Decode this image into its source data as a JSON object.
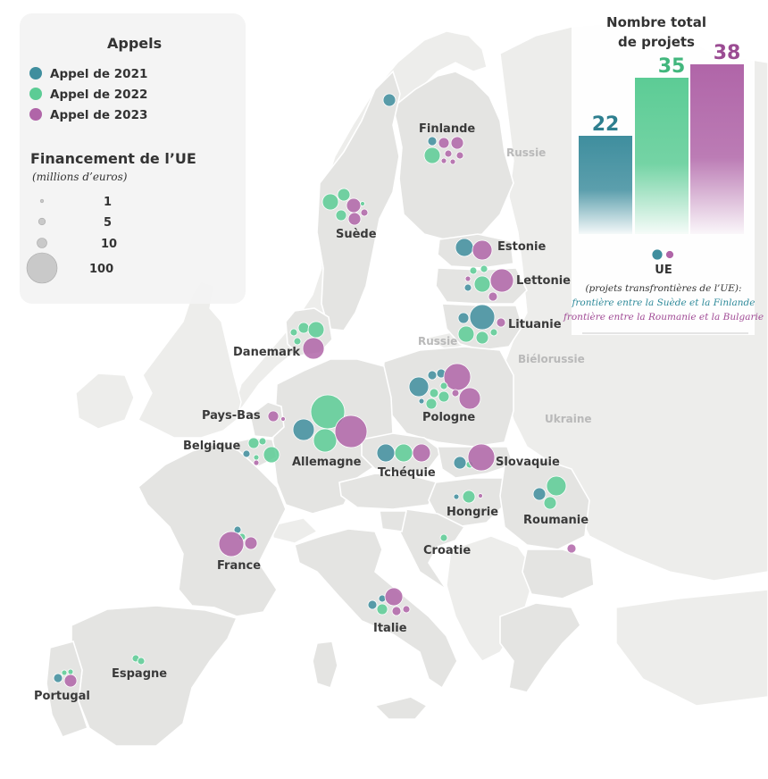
{
  "legend": {
    "calls_title": "Appels",
    "calls": [
      {
        "label": "Appel de 2021",
        "color": "#3f8e9e"
      },
      {
        "label": "Appel de 2022",
        "color": "#5ccc95"
      },
      {
        "label": "Appel de 2023",
        "color": "#b065a8"
      }
    ],
    "funding_title": "Financement de l’UE",
    "funding_subtitle": "(millions d’euros)",
    "sizes": [
      {
        "label": "1",
        "value": 1
      },
      {
        "label": "5",
        "value": 5
      },
      {
        "label": "10",
        "value": 10
      },
      {
        "label": "100",
        "value": 100
      }
    ]
  },
  "bars": {
    "title_line1": "Nombre total",
    "title_line2": "de projets",
    "items": [
      {
        "value": 22,
        "label": "22",
        "color": "#3f8e9e"
      },
      {
        "value": 35,
        "label": "35",
        "color": "#5ccc95"
      },
      {
        "value": 38,
        "label": "38",
        "color": "#b065a8"
      }
    ],
    "max": 38
  },
  "ue_box": {
    "label": "UE",
    "note": "(projets transfrontières de l’UE):",
    "note_teal": "frontière entre la Suède et la Finlande",
    "note_purple": "frontière entre la Roumanie et la Bulgarie"
  },
  "countries": [
    {
      "name": "Finlande"
    },
    {
      "name": "Suède"
    },
    {
      "name": "Estonie"
    },
    {
      "name": "Lettonie"
    },
    {
      "name": "Lituanie"
    },
    {
      "name": "Danemark"
    },
    {
      "name": "Pays-Bas"
    },
    {
      "name": "Belgique"
    },
    {
      "name": "Allemagne"
    },
    {
      "name": "Pologne"
    },
    {
      "name": "Tchéquie"
    },
    {
      "name": "Slovaquie"
    },
    {
      "name": "Hongrie"
    },
    {
      "name": "Roumanie"
    },
    {
      "name": "France"
    },
    {
      "name": "Croatie"
    },
    {
      "name": "Italie"
    },
    {
      "name": "Espagne"
    },
    {
      "name": "Portugal"
    }
  ],
  "non_eu_labels": [
    "Russie",
    "Russie",
    "Biélorussie",
    "Ukraine"
  ]
}
